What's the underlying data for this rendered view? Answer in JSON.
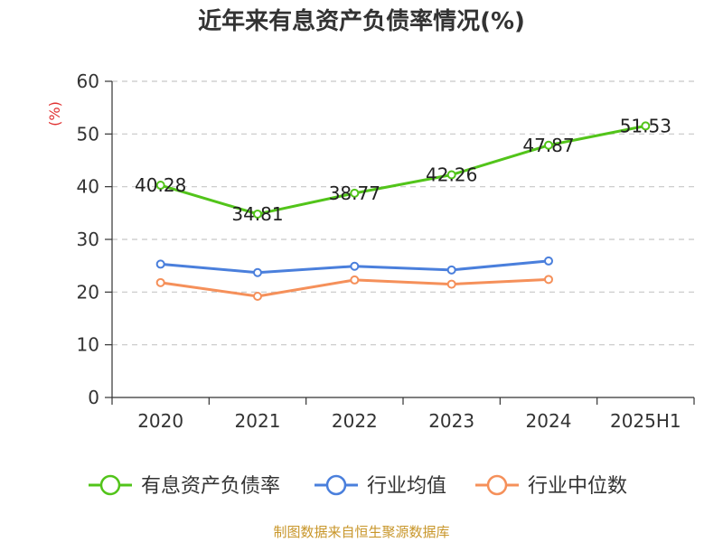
{
  "chart_data": {
    "type": "line",
    "title": "近年来有息资产负债率情况(%)",
    "ylabel": "(%)",
    "categories": [
      "2020",
      "2021",
      "2022",
      "2023",
      "2024",
      "2025H1"
    ],
    "ylim": [
      0,
      60
    ],
    "yticks": [
      "0",
      "10",
      "20",
      "30",
      "40",
      "50",
      "60"
    ],
    "grid": true,
    "legend_position": "bottom",
    "series": [
      {
        "name": "有息资产负债率",
        "color": "#52c41a",
        "values": [
          40.28,
          34.81,
          38.77,
          42.26,
          47.87,
          51.53
        ],
        "labels": [
          "40.28",
          "34.81",
          "38.77",
          "42.26",
          "47.87",
          "51.53"
        ]
      },
      {
        "name": "行业均值",
        "color": "#4a7fdc",
        "values": [
          25.3,
          23.7,
          24.9,
          24.2,
          25.9,
          null
        ]
      },
      {
        "name": "行业中位数",
        "color": "#f5905a",
        "values": [
          21.8,
          19.2,
          22.3,
          21.5,
          22.4,
          null
        ]
      }
    ]
  },
  "source": "制图数据来自恒生聚源数据库"
}
